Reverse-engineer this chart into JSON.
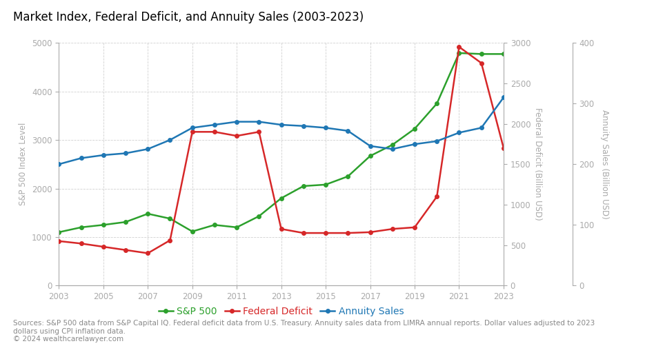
{
  "title": "Market Index, Federal Deficit, and Annuity Sales (2003-2023)",
  "years": [
    2003,
    2004,
    2005,
    2006,
    2007,
    2008,
    2009,
    2010,
    2011,
    2013,
    2015,
    2016,
    2017,
    2018,
    2019,
    2020,
    2021,
    2022,
    2023
  ],
  "sp500": [
    1100,
    1200,
    1250,
    1310,
    1480,
    1380,
    1115,
    1250,
    1200,
    1800,
    2080,
    2250,
    2670,
    2900,
    3230,
    3750,
    4790,
    4770,
    4770
  ],
  "sp500_years": [
    2003,
    2004,
    2005,
    2006,
    2007,
    2008,
    2009,
    2010,
    2011,
    2012,
    2013,
    2014,
    2015,
    2016,
    2017,
    2018,
    2019,
    2020,
    2021,
    2022,
    2023
  ],
  "sp500_vals": [
    1100,
    1200,
    1250,
    1310,
    1480,
    1380,
    1115,
    1250,
    1200,
    1430,
    1800,
    2050,
    2080,
    2250,
    2670,
    2900,
    3230,
    3750,
    4790,
    4770,
    4770
  ],
  "deficit_years": [
    2003,
    2004,
    2005,
    2006,
    2007,
    2008,
    2009,
    2010,
    2011,
    2012,
    2013,
    2014,
    2015,
    2016,
    2017,
    2018,
    2019,
    2020,
    2021,
    2022,
    2023
  ],
  "deficit_vals": [
    550,
    520,
    480,
    440,
    400,
    560,
    1900,
    1900,
    1850,
    1900,
    700,
    650,
    650,
    650,
    660,
    700,
    720,
    1100,
    2950,
    2750,
    1700
  ],
  "annuity_years": [
    2003,
    2004,
    2005,
    2006,
    2007,
    2008,
    2009,
    2010,
    2011,
    2012,
    2013,
    2014,
    2015,
    2016,
    2017,
    2018,
    2019,
    2020,
    2021,
    2022,
    2023
  ],
  "annuity_vals": [
    200,
    210,
    215,
    218,
    225,
    240,
    260,
    265,
    270,
    270,
    265,
    263,
    260,
    255,
    230,
    225,
    233,
    238,
    252,
    260,
    310
  ],
  "sp500_color": "#2ca02c",
  "deficit_color": "#d62728",
  "annuity_color": "#1f77b4",
  "sp500_label": "S&P 500",
  "deficit_label": "Federal Deficit",
  "annuity_label": "Annuity Sales",
  "ylabel_left": "S&P 500 Index Level",
  "ylabel_mid": "Federal Deficit (Billion USD)",
  "ylabel_right": "Annuity Sales (Billion USD)",
  "ylim_left": [
    0,
    5000
  ],
  "ylim_mid": [
    0,
    3000
  ],
  "ylim_right": [
    0,
    400
  ],
  "xticks": [
    2003,
    2005,
    2007,
    2009,
    2011,
    2013,
    2015,
    2017,
    2019,
    2021,
    2023
  ],
  "yticks_left": [
    0,
    1000,
    2000,
    3000,
    4000,
    5000
  ],
  "yticks_mid": [
    0,
    500,
    1000,
    1500,
    2000,
    2500,
    3000
  ],
  "yticks_right": [
    0,
    100,
    200,
    300,
    400
  ],
  "source_text": "Sources: S&P 500 data from S&P Capital IQ. Federal deficit data from U.S. Treasury. Annuity sales data from LIMRA annual reports. Dollar values adjusted to 2023\ndollars using CPI inflation data.\n© 2024 wealthcarelawyer.com",
  "background_color": "#ffffff",
  "title_fontsize": 12,
  "label_fontsize": 8.5,
  "tick_fontsize": 8.5,
  "legend_fontsize": 10,
  "source_fontsize": 7.5,
  "marker_size": 4,
  "line_width": 1.8,
  "grid_color": "#d0d0d0",
  "axis_color": "#aaaaaa",
  "text_color": "#aaaaaa"
}
